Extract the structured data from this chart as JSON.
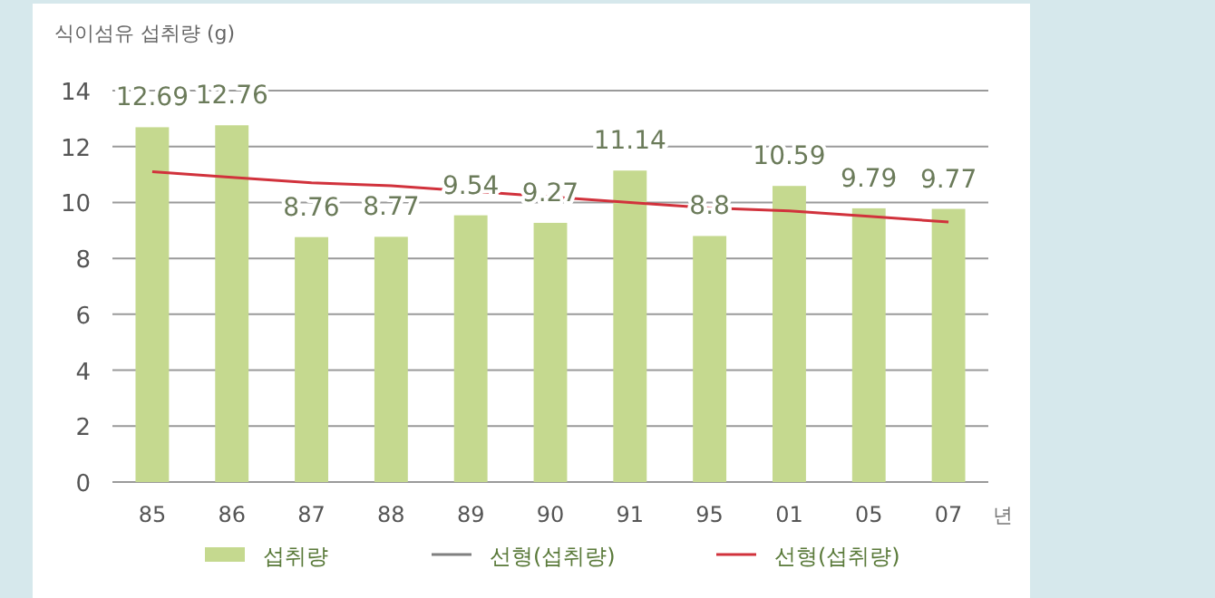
{
  "chart_data": {
    "type": "bar",
    "ylabel": "식이섬유 섭취량 (g)",
    "xlabel": "년",
    "categories": [
      "85",
      "86",
      "87",
      "88",
      "89",
      "90",
      "91",
      "95",
      "01",
      "05",
      "07"
    ],
    "series": [
      {
        "name": "섭취량",
        "color": "#c5d98f",
        "values": [
          12.69,
          12.76,
          8.76,
          8.77,
          9.54,
          9.27,
          11.14,
          8.8,
          10.59,
          9.79,
          9.77
        ]
      },
      {
        "name": "선형(섭취량)",
        "type": "line",
        "color": "#808080",
        "values": [
          null,
          null,
          null,
          null,
          null,
          null,
          null,
          null,
          null,
          null,
          null
        ]
      },
      {
        "name": "선형(섭취량)",
        "type": "line",
        "color": "#d1323c",
        "values": [
          11.1,
          10.9,
          10.7,
          10.6,
          10.4,
          10.2,
          10.0,
          9.8,
          9.7,
          9.5,
          9.3
        ]
      }
    ],
    "value_labels": [
      "12.69",
      "12.76",
      "8.76",
      "8.77",
      "9.54",
      "9.27",
      "11.14",
      "8.8",
      "10.59",
      "9.79",
      "9.77"
    ],
    "ylim": [
      0,
      14
    ],
    "yticks": [
      0,
      2,
      4,
      6,
      8,
      10,
      12,
      14
    ],
    "grid": "y",
    "legend": "bottom"
  }
}
